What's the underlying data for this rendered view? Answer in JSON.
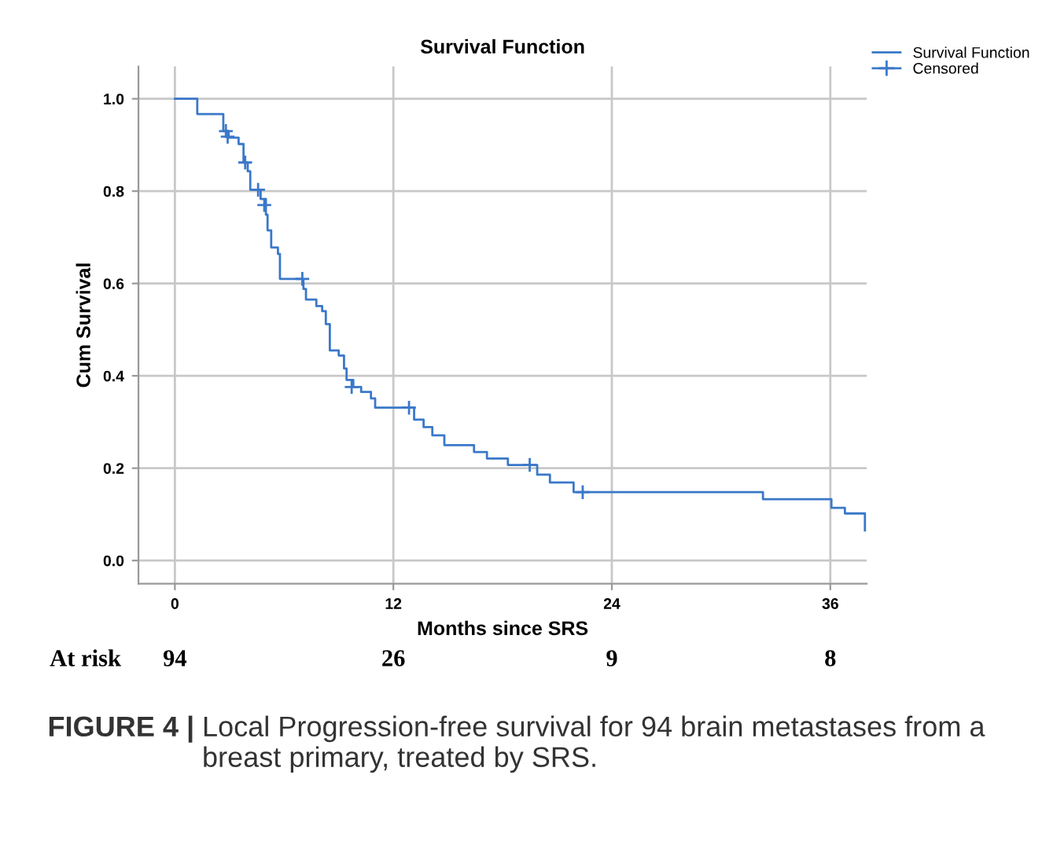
{
  "chart_data": {
    "type": "step",
    "title": "Survival Function",
    "xlabel": "Months since SRS",
    "ylabel": "Cum Survival",
    "series": [
      {
        "name": "Survival Function",
        "color": "#3a78c9",
        "marker": "none",
        "x": [
          0,
          1.23,
          2.66,
          2.95,
          3.5,
          3.77,
          4.0,
          4.14,
          4.71,
          5.0,
          5.09,
          5.29,
          5.66,
          5.77,
          7.06,
          7.2,
          7.77,
          8.09,
          8.29,
          8.51,
          9.0,
          9.29,
          9.43,
          9.8,
          10.23,
          10.77,
          11.0,
          13.14,
          13.66,
          14.14,
          14.8,
          16.43,
          17.14,
          18.29,
          19.9,
          20.6,
          21.9,
          32.3,
          36.06,
          36.8,
          37.9
        ],
        "values": [
          1.0,
          0.967,
          0.93,
          0.916,
          0.902,
          0.862,
          0.843,
          0.803,
          0.783,
          0.749,
          0.715,
          0.678,
          0.664,
          0.61,
          0.588,
          0.565,
          0.551,
          0.54,
          0.512,
          0.455,
          0.444,
          0.416,
          0.391,
          0.376,
          0.365,
          0.351,
          0.331,
          0.305,
          0.289,
          0.271,
          0.25,
          0.235,
          0.221,
          0.207,
          0.186,
          0.169,
          0.148,
          0.133,
          0.114,
          0.102,
          0.065
        ]
      },
      {
        "name": "Censored",
        "type": "scatter",
        "color": "#3a78c9",
        "marker": "cross",
        "x": [
          2.8,
          2.9,
          3.86,
          4.57,
          4.91,
          7.0,
          9.71,
          12.86,
          19.49,
          22.4
        ],
        "values": [
          0.93,
          0.918,
          0.862,
          0.803,
          0.77,
          0.61,
          0.376,
          0.331,
          0.207,
          0.148
        ]
      }
    ],
    "xlim": [
      -2,
      38
    ],
    "xticks": [
      0,
      12,
      24,
      36
    ],
    "ylim": [
      -0.05,
      1.07
    ],
    "yticks": [
      {
        "value": 0,
        "label": "0.0"
      },
      0.2,
      0.4,
      0.6,
      0.8,
      {
        "value": 1,
        "label": "1.0"
      }
    ],
    "grid": true,
    "legend": "top right",
    "annotations": [
      "At risk",
      "94",
      "26",
      "9",
      "8",
      "FIGURE 4 |",
      "Local Progression-free survival for 94 brain metastases from a breast primary, treated by SRS."
    ]
  }
}
